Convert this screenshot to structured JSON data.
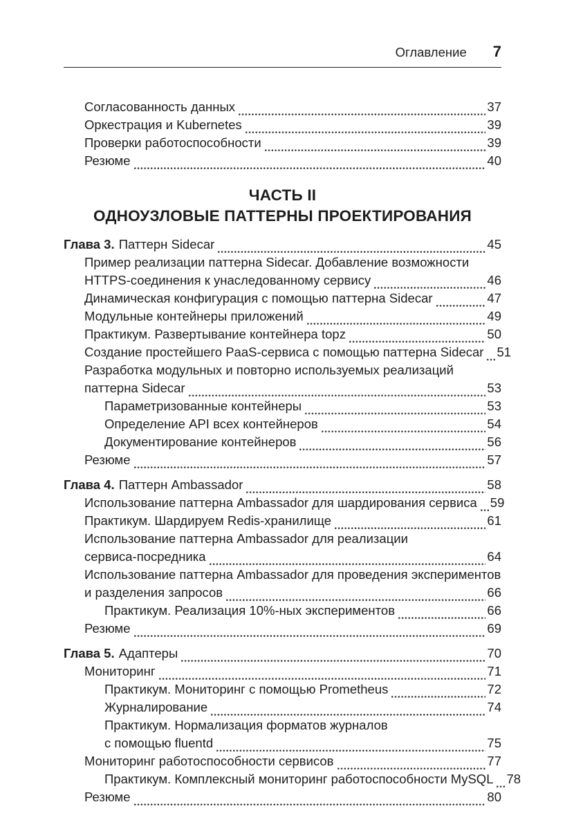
{
  "page": {
    "header": {
      "title": "Оглавление",
      "page_number": "7"
    },
    "toc": [
      {
        "type": "entry",
        "level": 1,
        "lines": [
          "Согласованность данных"
        ],
        "page": "37"
      },
      {
        "type": "entry",
        "level": 1,
        "lines": [
          "Оркестрация и Kubernetes"
        ],
        "page": "39"
      },
      {
        "type": "entry",
        "level": 1,
        "lines": [
          "Проверки работоспособности"
        ],
        "page": "39"
      },
      {
        "type": "entry",
        "level": 1,
        "lines": [
          "Резюме"
        ],
        "page": "40"
      },
      {
        "type": "part",
        "title": "ЧАСТЬ II",
        "subtitle": "ОДНОУЗЛОВЫЕ ПАТТЕРНЫ ПРОЕКТИРОВАНИЯ"
      },
      {
        "type": "chapter",
        "prefix": "Глава 3.",
        "title": "Паттерн Sidecar",
        "page": "45"
      },
      {
        "type": "entry",
        "level": 1,
        "lines": [
          "Пример реализации паттерна Sidecar. Добавление возможности",
          "HTTPS-соединения к унаследованному сервису"
        ],
        "page": "46"
      },
      {
        "type": "entry",
        "level": 1,
        "lines": [
          "Динамическая конфигурация с помощью паттерна Sidecar"
        ],
        "page": "47"
      },
      {
        "type": "entry",
        "level": 1,
        "lines": [
          "Модульные контейнеры приложений"
        ],
        "page": "49"
      },
      {
        "type": "entry",
        "level": 1,
        "lines": [
          "Практикум. Развертывание контейнера topz"
        ],
        "page": "50"
      },
      {
        "type": "entry",
        "level": 1,
        "lines": [
          "Создание простейшего PaaS-сервиса с помощью паттерна Sidecar"
        ],
        "page": "51"
      },
      {
        "type": "entry",
        "level": 1,
        "lines": [
          "Разработка модульных и повторно используемых реализаций",
          "паттерна Sidecar"
        ],
        "page": "53"
      },
      {
        "type": "entry",
        "level": 2,
        "lines": [
          "Параметризованные контейнеры"
        ],
        "page": "53"
      },
      {
        "type": "entry",
        "level": 2,
        "lines": [
          "Определение API всех контейнеров"
        ],
        "page": "54"
      },
      {
        "type": "entry",
        "level": 2,
        "lines": [
          "Документирование контейнеров"
        ],
        "page": "56"
      },
      {
        "type": "entry",
        "level": 1,
        "lines": [
          "Резюме"
        ],
        "page": "57"
      },
      {
        "type": "chapter",
        "prefix": "Глава 4.",
        "title": "Паттерн Ambassador",
        "page": "58"
      },
      {
        "type": "entry",
        "level": 1,
        "lines": [
          "Использование паттерна Ambassador для шардирования сервиса"
        ],
        "page": "59"
      },
      {
        "type": "entry",
        "level": 1,
        "lines": [
          "Практикум. Шардируем Redis-хранилище"
        ],
        "page": "61"
      },
      {
        "type": "entry",
        "level": 1,
        "lines": [
          "Использование паттерна Ambassador для реализации",
          "сервиса-посредника"
        ],
        "page": "64"
      },
      {
        "type": "entry",
        "level": 1,
        "lines": [
          "Использование паттерна Ambassador для проведения экспериментов",
          "и разделения запросов"
        ],
        "page": "66"
      },
      {
        "type": "entry",
        "level": 2,
        "lines": [
          "Практикум. Реализация 10%-ных экспериментов"
        ],
        "page": "66"
      },
      {
        "type": "entry",
        "level": 1,
        "lines": [
          "Резюме"
        ],
        "page": "69"
      },
      {
        "type": "chapter",
        "prefix": "Глава 5.",
        "title": "Адаптеры",
        "page": "70"
      },
      {
        "type": "entry",
        "level": 1,
        "lines": [
          "Мониторинг"
        ],
        "page": "71"
      },
      {
        "type": "entry",
        "level": 2,
        "lines": [
          "Практикум. Мониторинг с помощью Prometheus"
        ],
        "page": "72"
      },
      {
        "type": "entry",
        "level": 2,
        "lines": [
          "Журналирование"
        ],
        "page": "74"
      },
      {
        "type": "entry",
        "level": 2,
        "lines": [
          "Практикум. Нормализация форматов журналов",
          "с помощью fluentd"
        ],
        "page": "75"
      },
      {
        "type": "entry",
        "level": 1,
        "lines": [
          "Мониторинг работоспособности сервисов"
        ],
        "page": "77"
      },
      {
        "type": "entry",
        "level": 2,
        "lines": [
          "Практикум. Комплексный мониторинг работоспособности MySQL"
        ],
        "page": "78"
      },
      {
        "type": "entry",
        "level": 1,
        "lines": [
          "Резюме"
        ],
        "page": "80"
      }
    ]
  }
}
